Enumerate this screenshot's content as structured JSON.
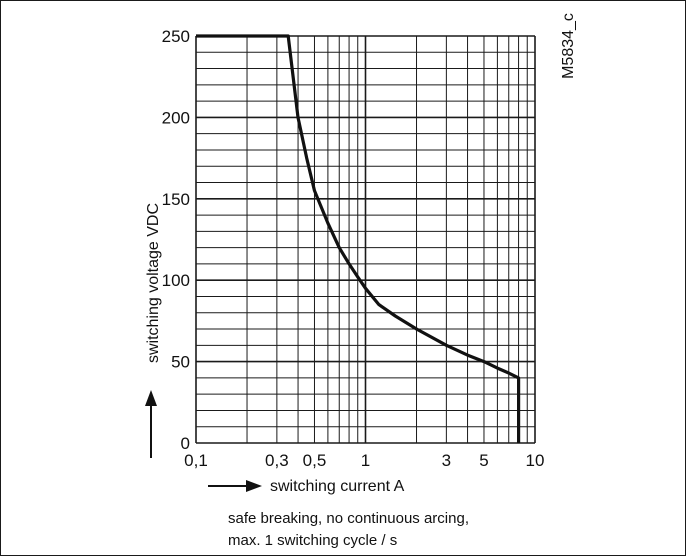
{
  "chart_data": {
    "type": "line",
    "code": "M5834_c",
    "xlabel": "switching current A",
    "ylabel": "switching voltage VDC",
    "x_scale": "log",
    "xlim": [
      0.1,
      10
    ],
    "ylim": [
      0,
      250
    ],
    "x_ticks": [
      {
        "value": 0.1,
        "label": "0,1"
      },
      {
        "value": 0.3,
        "label": "0,3"
      },
      {
        "value": 0.5,
        "label": "0,5"
      },
      {
        "value": 1,
        "label": "1"
      },
      {
        "value": 3,
        "label": "3"
      },
      {
        "value": 5,
        "label": "5"
      },
      {
        "value": 10,
        "label": "10"
      }
    ],
    "y_ticks": [
      {
        "value": 0,
        "label": "0"
      },
      {
        "value": 50,
        "label": "50"
      },
      {
        "value": 100,
        "label": "100"
      },
      {
        "value": 150,
        "label": "150"
      },
      {
        "value": 200,
        "label": "200"
      },
      {
        "value": 250,
        "label": "250"
      }
    ],
    "grid": true,
    "series": [
      {
        "x": [
          0.1,
          0.35,
          0.4,
          0.45,
          0.5,
          0.6,
          0.7,
          0.8,
          0.9,
          1.0,
          1.2,
          1.5,
          2,
          3,
          4,
          5,
          6,
          7,
          8,
          8,
          8
        ],
        "y": [
          250,
          250,
          200,
          175,
          155,
          135,
          120,
          110,
          102,
          95,
          85,
          78,
          70,
          60,
          54,
          50,
          46,
          43,
          40,
          20,
          0
        ]
      }
    ],
    "notes": [
      "safe breaking, no continuous arcing,",
      "max. 1 switching cycle / s"
    ]
  }
}
